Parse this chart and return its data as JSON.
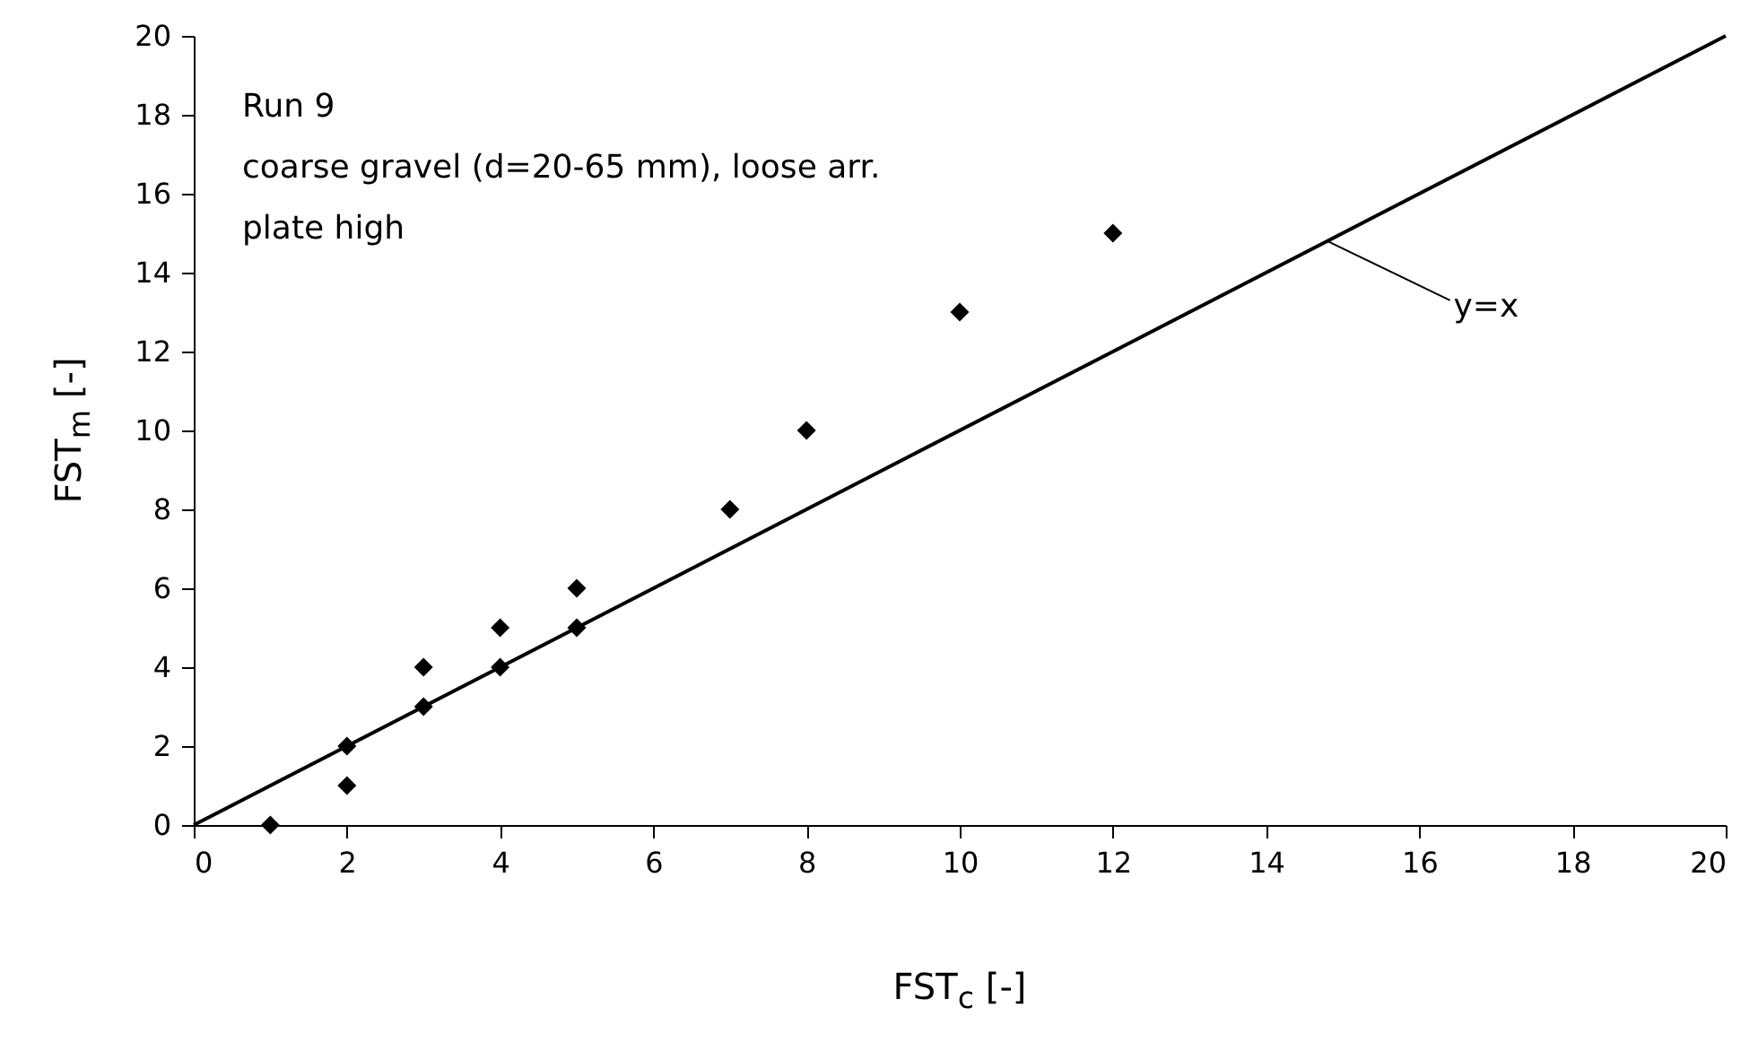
{
  "chart_data": {
    "type": "scatter",
    "xlabel": "FST$_{c}$ [-]",
    "ylabel": "FST$_{m}$ [-]",
    "xlim": [
      0,
      20
    ],
    "ylim": [
      0,
      20
    ],
    "xticks": [
      0,
      2,
      4,
      6,
      8,
      10,
      12,
      14,
      16,
      18,
      20
    ],
    "yticks": [
      0,
      2,
      4,
      6,
      8,
      10,
      12,
      14,
      16,
      18,
      20
    ],
    "grid": false,
    "series": [
      {
        "marker": "diamond",
        "color": "#000000",
        "x": [
          1,
          2,
          2,
          3,
          3,
          4,
          4,
          5,
          5,
          7,
          8,
          10,
          12
        ],
        "values": [
          0,
          1,
          2,
          3,
          4,
          4,
          5,
          5,
          6,
          8,
          10,
          13,
          15
        ]
      },
      {
        "type": "line",
        "color": "#000000",
        "line_style": "solid",
        "x": [
          0,
          20
        ],
        "values": [
          0,
          20
        ]
      }
    ],
    "annotations": [
      "Run 9",
      "coarse gravel (d=20-65 mm), loose arr.",
      "plate high",
      {
        "text": "y=x",
        "x": 14.8,
        "y": 14.8
      }
    ]
  }
}
